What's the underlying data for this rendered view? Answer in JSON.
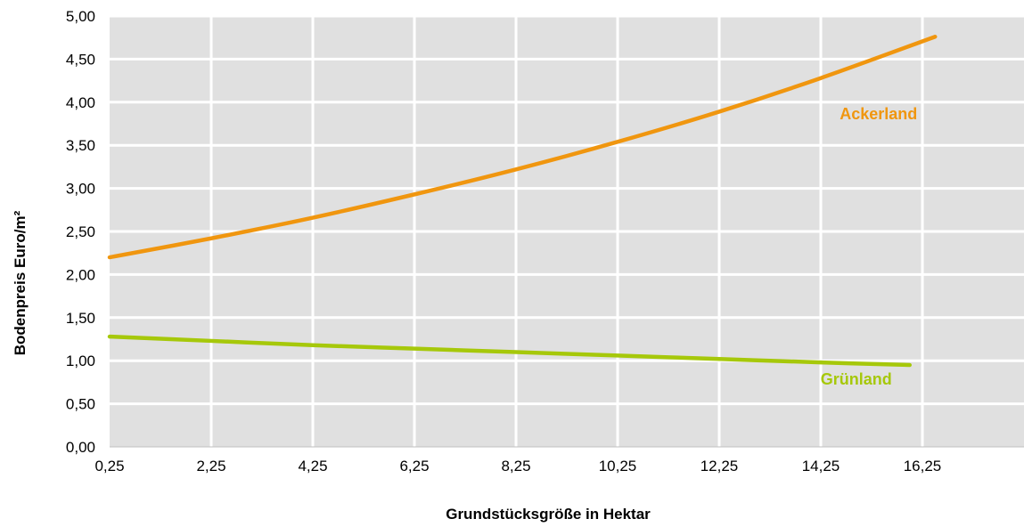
{
  "chart_data": {
    "type": "line",
    "xlabel": "Grundstücksgröße in Hektar",
    "ylabel": "Bodenpreis Euro/m²",
    "xlim": [
      0.25,
      18.25
    ],
    "ylim": [
      0,
      5
    ],
    "x_ticks": [
      "0,25",
      "2,25",
      "4,25",
      "6,25",
      "8,25",
      "10,25",
      "12,25",
      "14,25",
      "16,25"
    ],
    "y_ticks": [
      "0,00",
      "0,50",
      "1,00",
      "1,50",
      "2,00",
      "2,50",
      "3,00",
      "3,50",
      "4,00",
      "4,50",
      "5,00"
    ],
    "grid": true,
    "plot_background": "#e0e0e0",
    "series": [
      {
        "name": "Ackerland",
        "color": "#f0960f",
        "x": [
          0.25,
          2.25,
          4.25,
          6.25,
          8.25,
          10.25,
          12.25,
          14.25,
          16.5
        ],
        "values": [
          2.2,
          2.42,
          2.66,
          2.93,
          3.22,
          3.54,
          3.89,
          4.28,
          4.76
        ]
      },
      {
        "name": "Grünland",
        "color": "#a6c80a",
        "x": [
          0.25,
          2.25,
          4.25,
          6.25,
          8.25,
          10.25,
          12.25,
          14.25,
          16.0
        ],
        "values": [
          1.28,
          1.23,
          1.18,
          1.14,
          1.1,
          1.06,
          1.02,
          0.98,
          0.95
        ]
      }
    ]
  }
}
